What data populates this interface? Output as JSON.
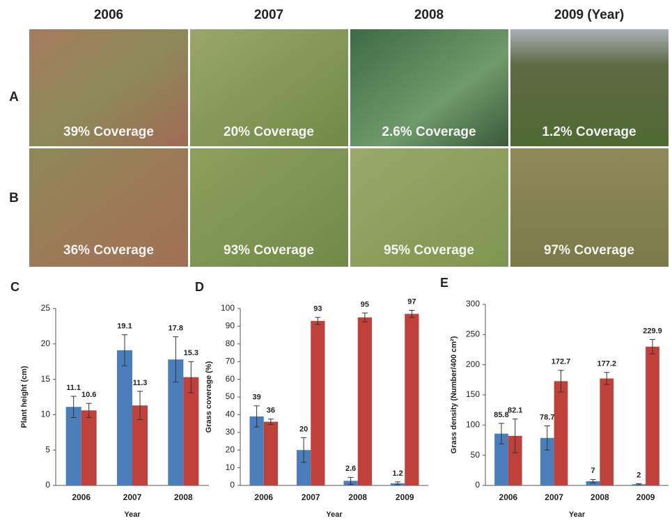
{
  "photos": {
    "columns": [
      "2006",
      "2007",
      "2008",
      "2009 (Year)"
    ],
    "rows": [
      {
        "label": "A",
        "captions": [
          "39% Coverage",
          "20% Coverage",
          "2.6% Coverage",
          "1.2% Coverage"
        ]
      },
      {
        "label": "B",
        "captions": [
          "36% Coverage",
          "93% Coverage",
          "95% Coverage",
          "97% Coverage"
        ]
      }
    ]
  },
  "chart_data": [
    {
      "type": "bar",
      "panel": "C",
      "ylabel": "Plant height (cm)",
      "xlabel": "Year",
      "categories": [
        "2006",
        "2007",
        "2008"
      ],
      "series": [
        {
          "color": "#4a7ebb",
          "values": [
            11.1,
            19.1,
            17.8
          ],
          "errors": [
            1.5,
            2.2,
            3.2
          ]
        },
        {
          "color": "#c0403a",
          "values": [
            10.6,
            11.3,
            15.3
          ],
          "errors": [
            1,
            2,
            2.2
          ]
        }
      ],
      "ylim": [
        0,
        25
      ],
      "yticks": [
        0,
        5,
        10,
        15,
        20,
        25
      ]
    },
    {
      "type": "bar",
      "panel": "D",
      "ylabel": "Grass coverage (%)",
      "xlabel": "Year",
      "categories": [
        "2006",
        "2007",
        "2008",
        "2009"
      ],
      "series": [
        {
          "color": "#4a7ebb",
          "values": [
            39,
            20,
            2.6,
            1.2
          ],
          "errors": [
            6,
            7,
            2,
            0.8
          ]
        },
        {
          "color": "#c0403a",
          "values": [
            36,
            93,
            95,
            97
          ],
          "errors": [
            1.5,
            2,
            2.5,
            2
          ]
        }
      ],
      "ylim": [
        0,
        100
      ],
      "yticks": [
        0,
        10,
        20,
        30,
        40,
        50,
        60,
        70,
        80,
        90,
        100
      ]
    },
    {
      "type": "bar",
      "panel": "E",
      "ylabel": "Grass density (Number/400 cm²)",
      "xlabel": "Year",
      "categories": [
        "2006",
        "2007",
        "2008",
        "2009"
      ],
      "series": [
        {
          "color": "#4a7ebb",
          "values": [
            85.8,
            78.7,
            7,
            2
          ],
          "errors": [
            17,
            20,
            3,
            1
          ]
        },
        {
          "color": "#c0403a",
          "values": [
            82.1,
            172.7,
            177.2,
            229.9
          ],
          "errors": [
            28,
            18,
            10,
            12
          ]
        }
      ],
      "ylim": [
        0,
        300
      ],
      "yticks": [
        0,
        50,
        100,
        150,
        200,
        250,
        300
      ]
    }
  ]
}
